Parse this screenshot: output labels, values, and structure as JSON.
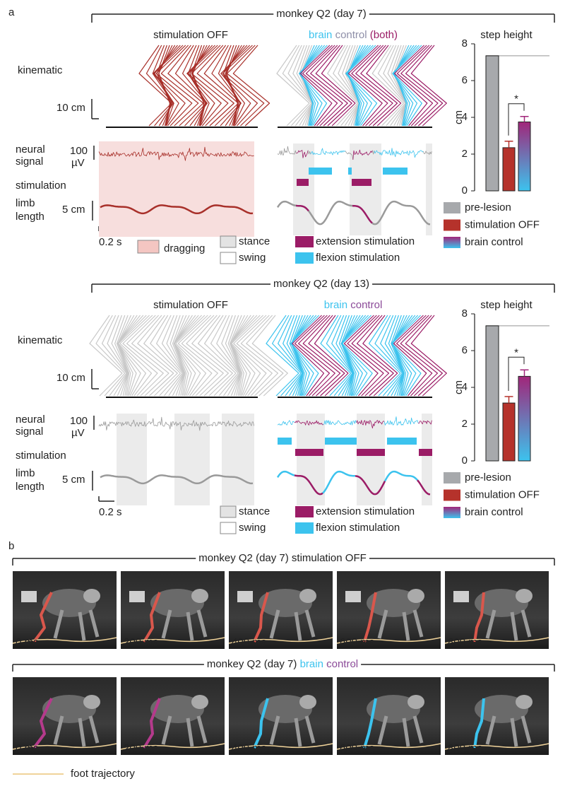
{
  "panel_a": {
    "label": "a",
    "experiments": [
      {
        "title": "monkey Q2 (day 7)",
        "off_title": "stimulation OFF",
        "control_title": [
          "brain",
          "control",
          "(both)"
        ],
        "row_labels": {
          "kinematic": "kinematic",
          "neural": [
            "neural",
            "signal"
          ],
          "stimulation": "stimulation",
          "limb": [
            "limb",
            "length"
          ]
        },
        "scales": {
          "distance": "10 cm",
          "voltage": [
            "100",
            "µV"
          ],
          "limb": "5 cm",
          "time": "0.2 s"
        },
        "legend": {
          "dragging": "dragging",
          "stance": "stance",
          "swing": "swing",
          "extension": "extension stimulation",
          "flexion": "flexion stimulation"
        },
        "step_height": {
          "type": "bar",
          "title": "step height",
          "ylabel": "cm",
          "categories": [
            "pre-lesion",
            "stimulation OFF",
            "brain control"
          ],
          "values": [
            7.35,
            2.35,
            3.75
          ],
          "errors": [
            null,
            0.35,
            0.3
          ],
          "colors": [
            "#a7a9ac",
            "#b5322b",
            [
              "#a1267a",
              "#3cc3ee"
            ]
          ],
          "ylim": [
            0,
            8
          ],
          "yticks": [
            0,
            2,
            4,
            6,
            8
          ],
          "significance": "*"
        }
      },
      {
        "title": "monkey Q2 (day 13)",
        "off_title": "stimulation OFF",
        "control_title": [
          "brain",
          "control"
        ],
        "row_labels": {
          "kinematic": "kinematic",
          "neural": [
            "neural",
            "signal"
          ],
          "stimulation": "stimulation",
          "limb": [
            "limb",
            "length"
          ]
        },
        "scales": {
          "distance": "10 cm",
          "voltage": [
            "100",
            "µV"
          ],
          "limb": "5 cm",
          "time": "0.2 s"
        },
        "legend": {
          "stance": "stance",
          "swing": "swing",
          "extension": "extension stimulation",
          "flexion": "flexion stimulation"
        },
        "step_height": {
          "type": "bar",
          "title": "step height",
          "ylabel": "cm",
          "categories": [
            "pre-lesion",
            "stimulation OFF",
            "brain control"
          ],
          "values": [
            7.35,
            3.15,
            4.6
          ],
          "errors": [
            null,
            0.35,
            0.35
          ],
          "colors": [
            "#a7a9ac",
            "#b5322b",
            [
              "#a1267a",
              "#3cc3ee"
            ]
          ],
          "ylim": [
            0,
            8
          ],
          "yticks": [
            0,
            2,
            4,
            6,
            8
          ],
          "significance": "*"
        }
      }
    ]
  },
  "panel_b": {
    "label": "b",
    "rows": [
      {
        "title": [
          "monkey Q2 (day 7) stimulation OFF"
        ],
        "times": [
          "0 ms",
          "200 ms",
          "400 ms",
          "600 ms",
          "800 ms"
        ]
      },
      {
        "title": [
          "monkey Q2 (day 7)",
          "brain",
          "control"
        ],
        "times": [
          "0 ms",
          "200 ms",
          "400 ms",
          "600 ms",
          "800 ms"
        ]
      }
    ],
    "legend": "foot trajectory"
  }
}
